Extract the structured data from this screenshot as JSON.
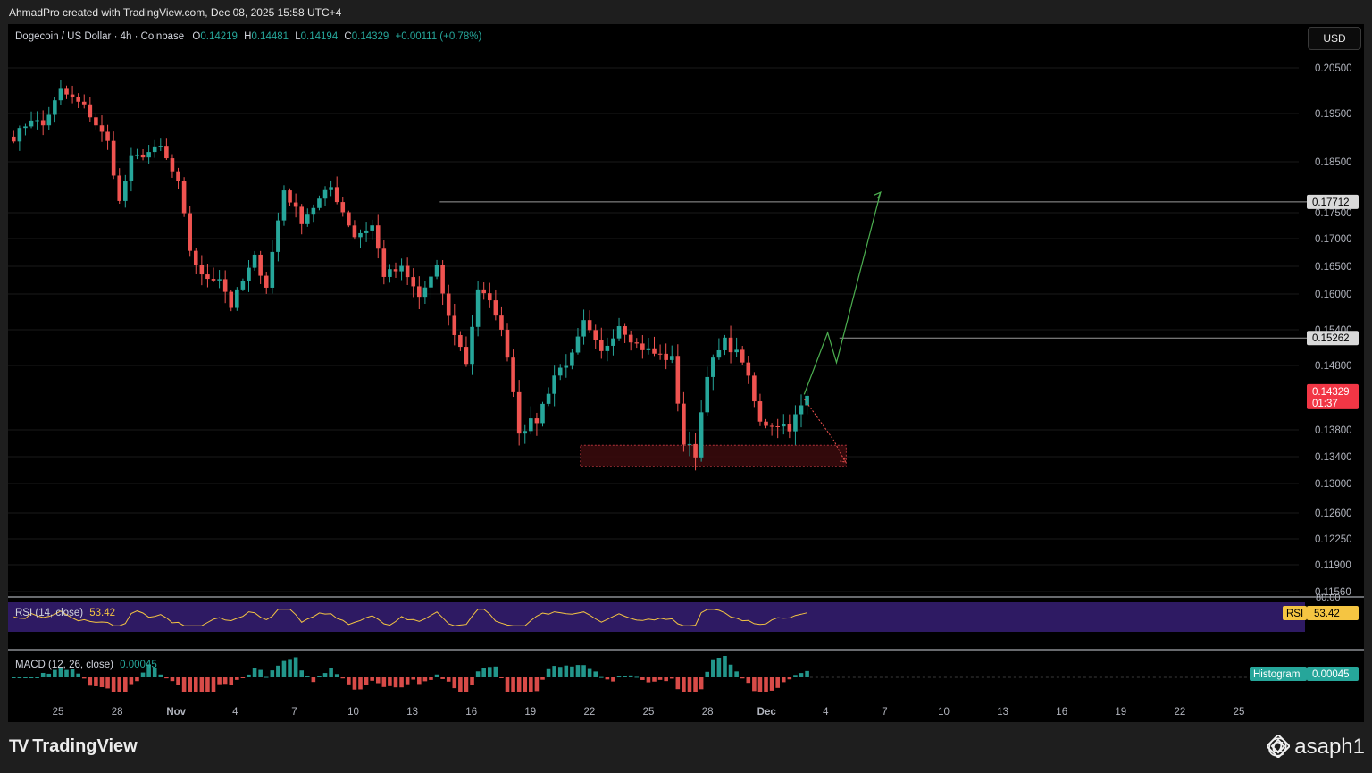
{
  "header": {
    "attribution": "AhmadPro created with TradingView.com, Dec 08, 2025 15:58 UTC+4"
  },
  "legend": {
    "symbol": "Dogecoin / US Dollar · 4h · Coinbase",
    "o_label": "O",
    "o_value": "0.14219",
    "h_label": "H",
    "h_value": "0.14481",
    "l_label": "L",
    "l_value": "0.14194",
    "c_label": "C",
    "c_value": "0.14329",
    "change": "+0.00111 (+0.78%)"
  },
  "currency_button": "USD",
  "colors": {
    "up": "#26a69a",
    "down": "#ef5350",
    "background": "#000000",
    "grid": "#1a1a1a",
    "zone_fill": "#3b0a0d",
    "zone_border": "#b2333a",
    "projection": "#4caf50",
    "rsi_band": "#2e1a63",
    "rsi_line": "#f5c542"
  },
  "chart_data": {
    "type": "candlestick",
    "title": "Dogecoin / US Dollar · 4h · Coinbase",
    "price_ticks": [
      "0.20500",
      "0.19500",
      "0.18500",
      "0.17500",
      "0.17000",
      "0.16500",
      "0.16000",
      "0.15400",
      "0.14800",
      "0.13800",
      "0.13400",
      "0.13000",
      "0.12600",
      "0.12250",
      "0.11900",
      "0.11560"
    ],
    "price_tick_values": [
      0.205,
      0.195,
      0.185,
      0.175,
      0.17,
      0.165,
      0.16,
      0.154,
      0.148,
      0.138,
      0.134,
      0.13,
      0.126,
      0.1225,
      0.119,
      0.1156
    ],
    "x_labels": [
      "25",
      "28",
      "Nov",
      "4",
      "7",
      "10",
      "13",
      "16",
      "19",
      "22",
      "25",
      "28",
      "Dec",
      "4",
      "7",
      "10",
      "13",
      "16",
      "19",
      "22",
      "25"
    ],
    "anchors": [
      {
        "t": 0,
        "p": 0.19
      },
      {
        "t": 3,
        "p": 0.194
      },
      {
        "t": 5,
        "p": 0.1925
      },
      {
        "t": 8,
        "p": 0.2
      },
      {
        "t": 12,
        "p": 0.1965
      },
      {
        "t": 16,
        "p": 0.189
      },
      {
        "t": 18,
        "p": 0.177
      },
      {
        "t": 20,
        "p": 0.1855
      },
      {
        "t": 25,
        "p": 0.188
      },
      {
        "t": 28,
        "p": 0.1805
      },
      {
        "t": 30,
        "p": 0.168
      },
      {
        "t": 32,
        "p": 0.163
      },
      {
        "t": 35,
        "p": 0.163
      },
      {
        "t": 37,
        "p": 0.158
      },
      {
        "t": 41,
        "p": 0.1665
      },
      {
        "t": 43,
        "p": 0.1615
      },
      {
        "t": 46,
        "p": 0.1795
      },
      {
        "t": 49,
        "p": 0.1735
      },
      {
        "t": 52,
        "p": 0.1775
      },
      {
        "t": 54,
        "p": 0.18
      },
      {
        "t": 58,
        "p": 0.1705
      },
      {
        "t": 61,
        "p": 0.1725
      },
      {
        "t": 63,
        "p": 0.1635
      },
      {
        "t": 66,
        "p": 0.1645
      },
      {
        "t": 69,
        "p": 0.1595
      },
      {
        "t": 72,
        "p": 0.1645
      },
      {
        "t": 74,
        "p": 0.156
      },
      {
        "t": 77,
        "p": 0.1485
      },
      {
        "t": 79,
        "p": 0.161
      },
      {
        "t": 82,
        "p": 0.157
      },
      {
        "t": 84,
        "p": 0.15
      },
      {
        "t": 86,
        "p": 0.138
      },
      {
        "t": 89,
        "p": 0.1395
      },
      {
        "t": 92,
        "p": 0.1465
      },
      {
        "t": 95,
        "p": 0.1495
      },
      {
        "t": 97,
        "p": 0.155
      },
      {
        "t": 100,
        "p": 0.15
      },
      {
        "t": 103,
        "p": 0.155
      },
      {
        "t": 106,
        "p": 0.1515
      },
      {
        "t": 109,
        "p": 0.15
      },
      {
        "t": 112,
        "p": 0.149
      },
      {
        "t": 114,
        "p": 0.136
      },
      {
        "t": 116,
        "p": 0.1345
      },
      {
        "t": 118,
        "p": 0.147
      },
      {
        "t": 121,
        "p": 0.152
      },
      {
        "t": 124,
        "p": 0.149
      },
      {
        "t": 127,
        "p": 0.139
      },
      {
        "t": 130,
        "p": 0.139
      },
      {
        "t": 132,
        "p": 0.1385
      },
      {
        "t": 134,
        "p": 0.1415
      },
      {
        "t": 135,
        "p": 0.1433
      }
    ],
    "levels": [
      {
        "label": "0.17712",
        "value": 0.17712
      },
      {
        "label": "0.15262",
        "value": 0.15262
      }
    ],
    "last_price": {
      "label": "0.14329",
      "countdown": "01:37",
      "value": 0.14329
    },
    "demand_zone": {
      "low": 0.1325,
      "high": 0.1357
    },
    "projection_up": [
      {
        "t": 135,
        "p": 0.1435
      },
      {
        "t": 139,
        "p": 0.1535
      },
      {
        "t": 140.5,
        "p": 0.1485
      },
      {
        "t": 148,
        "p": 0.179
      }
    ],
    "projection_down": [
      {
        "t": 135,
        "p": 0.1428
      },
      {
        "t": 140,
        "p": 0.1365
      },
      {
        "t": 142,
        "p": 0.1332
      }
    ]
  },
  "rsi": {
    "label": "RSI (14, close)",
    "value": "53.42",
    "tag": "RSI",
    "upper_cut": "80.00"
  },
  "macd": {
    "label": "MACD (12, 26, close)",
    "value": "0.00045",
    "tag": "Histogram"
  },
  "footer": {
    "brand": "TradingView",
    "watermark": "@ asaph1"
  }
}
